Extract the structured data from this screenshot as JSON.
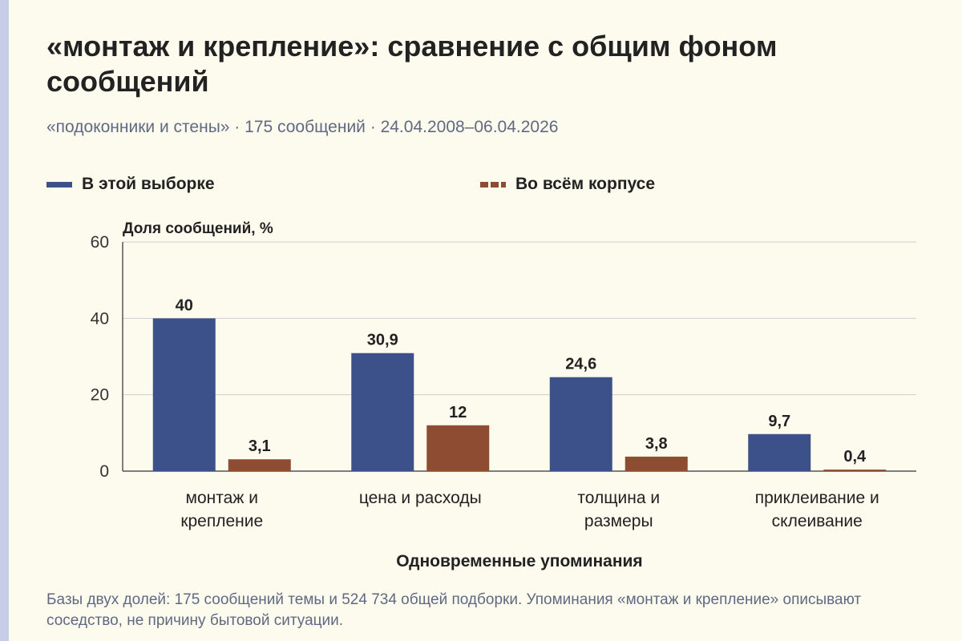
{
  "title": "«монтаж и крепление»: сравнение с общим фоном сообщений",
  "subtitle": "«подоконники и стены» · 175 сообщений · 24.04.2008–06.04.2026",
  "footnote": "Базы двух долей: 175 сообщений темы и 524 734 общей подборки. Упоминания «монтаж и крепление» описывают соседство, не причину бытовой ситуации.",
  "colors": {
    "series_a": "#3c5189",
    "series_b": "#8e4c33"
  },
  "chart_data": {
    "type": "bar",
    "ylabel": "Доля сообщений, %",
    "xlabel": "Одновременные упоминания",
    "ylim": [
      0,
      60
    ],
    "yticks": [
      0,
      20,
      40,
      60
    ],
    "grid": true,
    "legend_position": "top",
    "categories": [
      [
        "монтаж и",
        "крепление"
      ],
      [
        "цена и расходы"
      ],
      [
        "толщина и",
        "размеры"
      ],
      [
        "приклеивание и",
        "склеивание"
      ]
    ],
    "series": [
      {
        "name": "В этой выборке",
        "values": [
          40,
          30.9,
          24.6,
          9.7
        ],
        "labels": [
          "40",
          "30,9",
          "24,6",
          "9,7"
        ]
      },
      {
        "name": "Во всём корпусе",
        "values": [
          3.1,
          12,
          3.8,
          0.4
        ],
        "labels": [
          "3,1",
          "12",
          "3,8",
          "0,4"
        ]
      }
    ]
  }
}
